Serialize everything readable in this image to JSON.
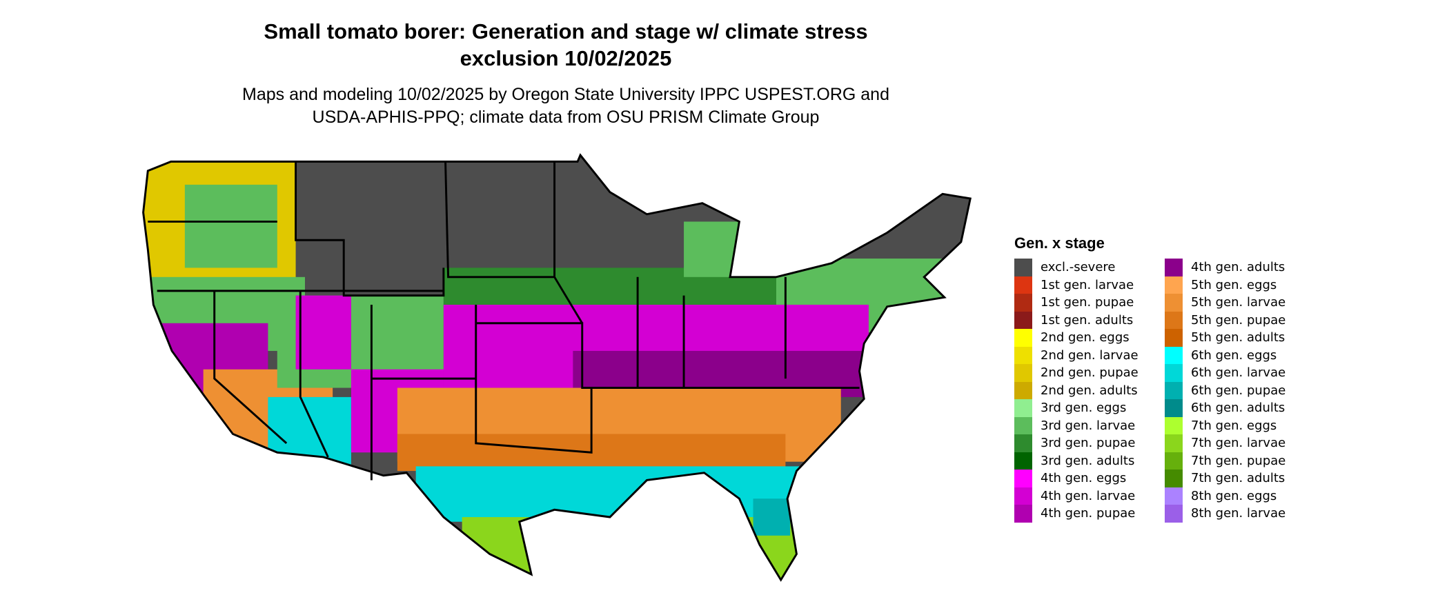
{
  "title_line1": "Small tomato borer: Generation and stage w/ climate stress",
  "title_line2": "exclusion 10/02/2025",
  "subtitle_line1": "Maps and modeling 10/02/2025 by Oregon State University IPPC USPEST.ORG and",
  "subtitle_line2": "USDA-APHIS-PPQ; climate data from OSU PRISM Climate Group",
  "legend": {
    "title": "Gen. x stage",
    "items": [
      {
        "label": "excl.-severe",
        "color": "#4d4d4d"
      },
      {
        "label": "1st gen. larvae",
        "color": "#dd3511"
      },
      {
        "label": "1st gen. pupae",
        "color": "#b02a12"
      },
      {
        "label": "1st gen. adults",
        "color": "#8b1a1a"
      },
      {
        "label": "2nd gen. eggs",
        "color": "#ffff00"
      },
      {
        "label": "2nd gen. larvae",
        "color": "#eee000"
      },
      {
        "label": "2nd gen. pupae",
        "color": "#e0c800"
      },
      {
        "label": "2nd gen. adults",
        "color": "#cdaa00"
      },
      {
        "label": "3rd gen. eggs",
        "color": "#90ee90"
      },
      {
        "label": "3rd gen. larvae",
        "color": "#5cbd5c"
      },
      {
        "label": "3rd gen. pupae",
        "color": "#2e8b2e"
      },
      {
        "label": "3rd gen. adults",
        "color": "#006400"
      },
      {
        "label": "4th gen. eggs",
        "color": "#ff00ff"
      },
      {
        "label": "4th gen. larvae",
        "color": "#d300d3"
      },
      {
        "label": "4th gen. pupae",
        "color": "#b000b0"
      },
      {
        "label": "4th gen. adults",
        "color": "#8b008b"
      },
      {
        "label": "5th gen. eggs",
        "color": "#ffa54f"
      },
      {
        "label": "5th gen. larvae",
        "color": "#ee9033"
      },
      {
        "label": "5th gen. pupae",
        "color": "#dd7718"
      },
      {
        "label": "5th gen. adults",
        "color": "#cd6200"
      },
      {
        "label": "6th gen. eggs",
        "color": "#00ffff"
      },
      {
        "label": "6th gen. larvae",
        "color": "#00d8d8"
      },
      {
        "label": "6th gen. pupae",
        "color": "#00b0b0"
      },
      {
        "label": "6th gen. adults",
        "color": "#008b8b"
      },
      {
        "label": "7th gen. eggs",
        "color": "#adff2f"
      },
      {
        "label": "7th gen. larvae",
        "color": "#8bd61c"
      },
      {
        "label": "7th gen. pupae",
        "color": "#66b00c"
      },
      {
        "label": "7th gen. adults",
        "color": "#458b00"
      },
      {
        "label": "8th gen. eggs",
        "color": "#ab82ff"
      },
      {
        "label": "8th gen. larvae",
        "color": "#9b5fe8"
      }
    ]
  }
}
